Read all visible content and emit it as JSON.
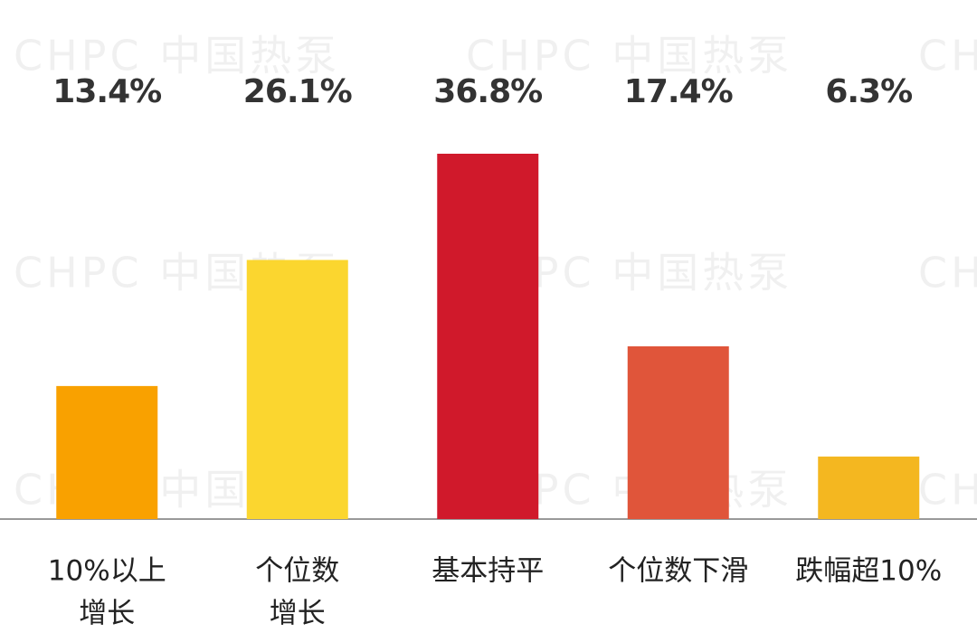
{
  "chart_data": {
    "type": "bar",
    "watermark": "CHPC 中国热泵",
    "categories": [
      [
        "10%以上",
        "增长"
      ],
      [
        "个位数",
        "增长"
      ],
      [
        "基本持平"
      ],
      [
        "个位数下滑"
      ],
      [
        "跌幅超10%"
      ]
    ],
    "values": [
      13.4,
      26.1,
      36.8,
      17.4,
      6.3
    ],
    "value_labels": [
      "13.4%",
      "26.1%",
      "36.8%",
      "17.4%",
      "6.3%"
    ],
    "colors": [
      "#f9a100",
      "#fbd62f",
      "#d0192b",
      "#e0553a",
      "#f4b720"
    ]
  }
}
